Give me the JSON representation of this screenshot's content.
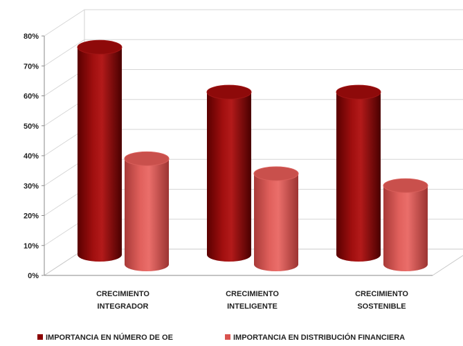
{
  "chart_data": {
    "type": "bar",
    "categories": [
      [
        "CRECIMIENTO",
        "INTEGRADOR"
      ],
      [
        "CRECIMIENTO",
        "INTELIGENTE"
      ],
      [
        "CRECIMIENTO",
        "SOSTENIBLE"
      ]
    ],
    "series": [
      {
        "name": "IMPORTANCIA EN NÚMERO DE OE",
        "values": [
          73,
          58,
          58
        ],
        "color": "#8b0000"
      },
      {
        "name": "IMPORTANCIA EN DISTRIBUCIÓN FINANCIERA",
        "values": [
          39,
          34,
          30
        ],
        "color": "#d9534f"
      }
    ],
    "yticks": [
      "0%",
      "10%",
      "20%",
      "30%",
      "40%",
      "50%",
      "60%",
      "70%",
      "80%"
    ],
    "ylim": [
      0,
      80
    ],
    "style": "3d-cylinder",
    "grid": true,
    "legend_position": "bottom"
  }
}
